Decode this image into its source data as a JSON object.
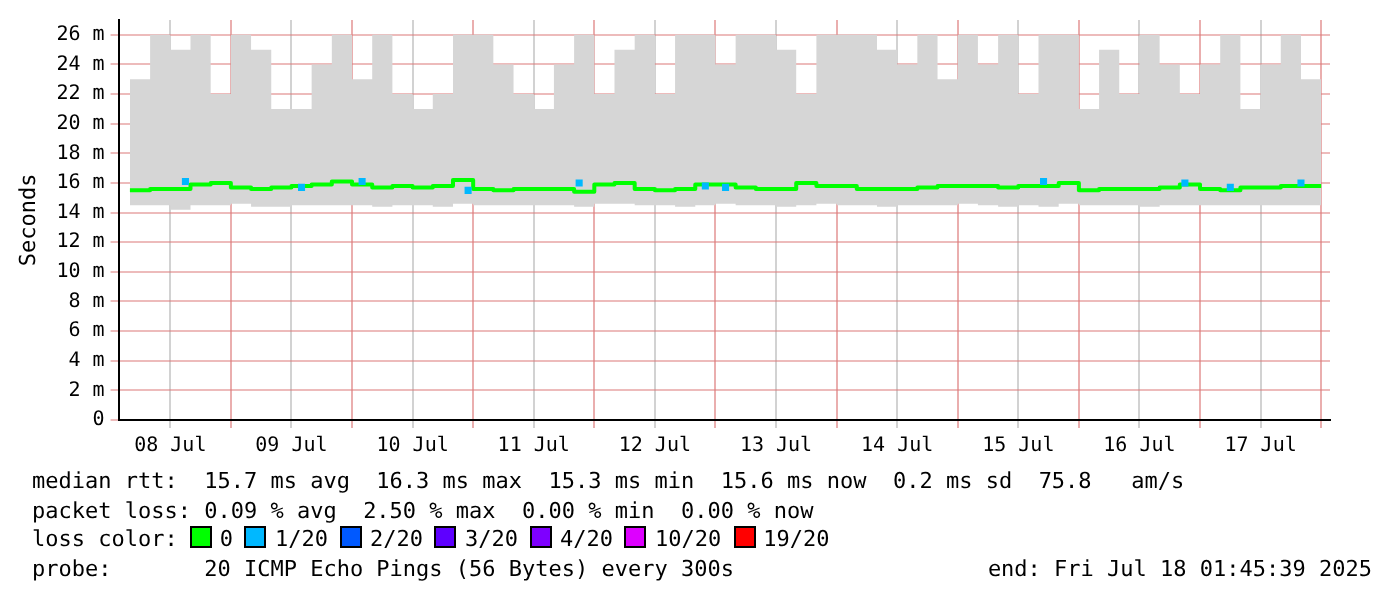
{
  "chart_data": {
    "type": "step",
    "ylabel": "Seconds",
    "legend_title": "loss color:",
    "legend": "bottom",
    "grid": true,
    "xlim": [
      "2025-07-08T01:45",
      "2025-07-18T01:45"
    ],
    "xticks": [
      {
        "value": "2025-07-08T12:00",
        "label": "08 Jul"
      },
      {
        "value": "2025-07-09",
        "label": null
      },
      {
        "value": "2025-07-09T12:00",
        "label": "09 Jul"
      },
      {
        "value": "2025-07-10",
        "label": null
      },
      {
        "value": "2025-07-10T12:00",
        "label": "10 Jul"
      },
      {
        "value": "2025-07-11",
        "label": null
      },
      {
        "value": "2025-07-11T12:00",
        "label": "11 Jul"
      },
      {
        "value": "2025-07-12",
        "label": null
      },
      {
        "value": "2025-07-12T12:00",
        "label": "12 Jul"
      },
      {
        "value": "2025-07-13",
        "label": null
      },
      {
        "value": "2025-07-13T12:00",
        "label": "13 Jul"
      },
      {
        "value": "2025-07-14",
        "label": null
      },
      {
        "value": "2025-07-14T12:00",
        "label": "14 Jul"
      },
      {
        "value": "2025-07-15",
        "label": null
      },
      {
        "value": "2025-07-15T12:00",
        "label": "15 Jul"
      },
      {
        "value": "2025-07-16",
        "label": null
      },
      {
        "value": "2025-07-16T12:00",
        "label": "16 Jul"
      },
      {
        "value": "2025-07-17",
        "label": null
      },
      {
        "value": "2025-07-17T12:00",
        "label": "17 Jul"
      },
      {
        "value": "2025-07-18",
        "label": null
      }
    ],
    "ylim": [
      0,
      27
    ],
    "yticks": [
      0,
      {
        "value": 2,
        "label": "2 m"
      },
      {
        "value": 4,
        "label": "4 m"
      },
      {
        "value": 6,
        "label": "6 m"
      },
      {
        "value": 8,
        "label": "8 m"
      },
      {
        "value": 10,
        "label": "10 m"
      },
      {
        "value": 12,
        "label": "12 m"
      },
      {
        "value": 14,
        "label": "14 m"
      },
      {
        "value": 16,
        "label": "16 m"
      },
      {
        "value": 18,
        "label": "18 m"
      },
      {
        "value": 20,
        "label": "20 m"
      },
      {
        "value": 22,
        "label": "22 m"
      },
      {
        "value": 24,
        "label": "24 m"
      },
      {
        "value": 26,
        "label": "26 m"
      }
    ],
    "x": [
      "2025-07-08T04:00",
      "2025-07-08T08:00",
      "2025-07-08T12:00",
      "2025-07-08T16:00",
      "2025-07-08T20:00",
      "2025-07-09T00:00",
      "2025-07-09T04:00",
      "2025-07-09T08:00",
      "2025-07-09T12:00",
      "2025-07-09T16:00",
      "2025-07-09T20:00",
      "2025-07-10T00:00",
      "2025-07-10T04:00",
      "2025-07-10T08:00",
      "2025-07-10T12:00",
      "2025-07-10T16:00",
      "2025-07-10T20:00",
      "2025-07-11T00:00",
      "2025-07-11T04:00",
      "2025-07-11T08:00",
      "2025-07-11T12:00",
      "2025-07-11T16:00",
      "2025-07-11T20:00",
      "2025-07-12T00:00",
      "2025-07-12T04:00",
      "2025-07-12T08:00",
      "2025-07-12T12:00",
      "2025-07-12T16:00",
      "2025-07-12T20:00",
      "2025-07-13T00:00",
      "2025-07-13T04:00",
      "2025-07-13T08:00",
      "2025-07-13T12:00",
      "2025-07-13T16:00",
      "2025-07-13T20:00",
      "2025-07-14T00:00",
      "2025-07-14T04:00",
      "2025-07-14T08:00",
      "2025-07-14T12:00",
      "2025-07-14T16:00",
      "2025-07-14T20:00",
      "2025-07-15T00:00",
      "2025-07-15T04:00",
      "2025-07-15T08:00",
      "2025-07-15T12:00",
      "2025-07-15T16:00",
      "2025-07-15T20:00",
      "2025-07-16T00:00",
      "2025-07-16T04:00",
      "2025-07-16T08:00",
      "2025-07-16T12:00",
      "2025-07-16T16:00",
      "2025-07-16T20:00",
      "2025-07-17T00:00",
      "2025-07-17T04:00",
      "2025-07-17T08:00",
      "2025-07-17T12:00",
      "2025-07-17T16:00",
      "2025-07-17T20:00",
      "2025-07-18T00:00"
    ],
    "series": [
      {
        "name": "0",
        "color": "#00ff00",
        "values": [
          15.5,
          15.6,
          15.6,
          15.9,
          16.0,
          15.7,
          15.6,
          15.7,
          15.8,
          15.9,
          16.1,
          15.9,
          15.7,
          15.8,
          15.7,
          15.8,
          16.2,
          15.6,
          15.5,
          15.6,
          15.6,
          15.6,
          15.4,
          15.9,
          16.0,
          15.6,
          15.5,
          15.6,
          15.9,
          15.9,
          15.7,
          15.6,
          15.6,
          16.0,
          15.8,
          15.8,
          15.6,
          15.6,
          15.6,
          15.7,
          15.8,
          15.8,
          15.8,
          15.7,
          15.8,
          15.8,
          16.0,
          15.5,
          15.6,
          15.6,
          15.6,
          15.7,
          15.9,
          15.6,
          15.5,
          15.7,
          15.7,
          15.8,
          15.8,
          15.8
        ],
        "lower": [
          14.5,
          14.5,
          14.2,
          14.5,
          14.5,
          14.6,
          14.4,
          14.4,
          14.5,
          14.5,
          14.5,
          14.5,
          14.4,
          14.5,
          14.5,
          14.4,
          14.6,
          14.5,
          14.5,
          14.5,
          14.5,
          14.5,
          14.4,
          14.6,
          14.6,
          14.5,
          14.5,
          14.4,
          14.5,
          14.6,
          14.5,
          14.5,
          14.4,
          14.5,
          14.6,
          14.5,
          14.5,
          14.4,
          14.5,
          14.5,
          14.5,
          14.6,
          14.5,
          14.4,
          14.5,
          14.4,
          14.6,
          14.5,
          14.5,
          14.5,
          14.4,
          14.5,
          14.5,
          14.5,
          14.5,
          14.5,
          14.5,
          14.5,
          14.5,
          14.6
        ],
        "upper": [
          23,
          26,
          25,
          26,
          22,
          26,
          25,
          21,
          21,
          24,
          26,
          23,
          26,
          22,
          21,
          22,
          26,
          26,
          24,
          22,
          21,
          24,
          26,
          22,
          25,
          26,
          22,
          26,
          26,
          24,
          26,
          26,
          25,
          22,
          26,
          26,
          26,
          25,
          24,
          26,
          23,
          26,
          24,
          26,
          22,
          26,
          26,
          21,
          25,
          22,
          26,
          24,
          22,
          24,
          26,
          21,
          24,
          26,
          23,
          26
        ]
      },
      {
        "name": "1/20",
        "color": "#00b8ff",
        "type": "scatter",
        "marker": "square",
        "x": [
          "2025-07-08T15:00",
          "2025-07-09T14:00",
          "2025-07-10T02:00",
          "2025-07-10T23:00",
          "2025-07-11T21:00",
          "2025-07-12T22:00",
          "2025-07-13T02:00",
          "2025-07-15T17:00",
          "2025-07-16T21:00",
          "2025-07-17T06:00",
          "2025-07-17T20:00"
        ],
        "values": [
          16.1,
          15.7,
          16.1,
          15.5,
          16.0,
          15.8,
          15.7,
          16.1,
          16.0,
          15.7,
          16.0
        ]
      },
      {
        "name": "2/20",
        "color": "#0059ff",
        "type": "scatter",
        "marker": "square",
        "values": [
          null,
          null,
          null,
          null,
          null,
          null,
          null,
          null,
          null,
          null,
          null,
          null,
          null,
          null,
          null,
          null,
          null,
          null,
          null,
          null,
          null,
          null,
          null,
          null,
          null,
          null,
          null,
          null,
          null,
          null,
          null,
          null,
          null,
          null,
          null,
          null,
          null,
          null,
          null,
          null,
          null,
          null,
          null,
          null,
          null,
          null,
          null,
          null,
          null,
          null,
          null,
          null,
          null,
          null,
          null,
          null,
          null,
          null,
          null,
          null
        ]
      },
      {
        "name": "3/20",
        "color": "#5e00ff",
        "type": "scatter",
        "marker": "square",
        "values": [
          null,
          null,
          null,
          null,
          null,
          null,
          null,
          null,
          null,
          null,
          null,
          null,
          null,
          null,
          null,
          null,
          null,
          null,
          null,
          null,
          null,
          null,
          null,
          null,
          null,
          null,
          null,
          null,
          null,
          null,
          null,
          null,
          null,
          null,
          null,
          null,
          null,
          null,
          null,
          null,
          null,
          null,
          null,
          null,
          null,
          null,
          null,
          null,
          null,
          null,
          null,
          null,
          null,
          null,
          null,
          null,
          null,
          null,
          null,
          null
        ]
      },
      {
        "name": "4/20",
        "color": "#7e00ff",
        "type": "scatter",
        "marker": "square",
        "values": [
          null,
          null,
          null,
          null,
          null,
          null,
          null,
          null,
          null,
          null,
          null,
          null,
          null,
          null,
          null,
          null,
          null,
          null,
          null,
          null,
          null,
          null,
          null,
          null,
          null,
          null,
          null,
          null,
          null,
          null,
          null,
          null,
          null,
          null,
          null,
          null,
          null,
          null,
          null,
          null,
          null,
          null,
          null,
          null,
          null,
          null,
          null,
          null,
          null,
          null,
          null,
          null,
          null,
          null,
          null,
          null,
          null,
          null,
          null,
          null
        ]
      },
      {
        "name": "10/20",
        "color": "#dd00ff",
        "type": "scatter",
        "marker": "square",
        "values": [
          null,
          null,
          null,
          null,
          null,
          null,
          null,
          null,
          null,
          null,
          null,
          null,
          null,
          null,
          null,
          null,
          null,
          null,
          null,
          null,
          null,
          null,
          null,
          null,
          null,
          null,
          null,
          null,
          null,
          null,
          null,
          null,
          null,
          null,
          null,
          null,
          null,
          null,
          null,
          null,
          null,
          null,
          null,
          null,
          null,
          null,
          null,
          null,
          null,
          null,
          null,
          null,
          null,
          null,
          null,
          null,
          null,
          null,
          null,
          null
        ]
      },
      {
        "name": "19/20",
        "color": "#ff0000",
        "type": "scatter",
        "marker": "square",
        "values": [
          null,
          null,
          null,
          null,
          null,
          null,
          null,
          null,
          null,
          null,
          null,
          null,
          null,
          null,
          null,
          null,
          null,
          null,
          null,
          null,
          null,
          null,
          null,
          null,
          null,
          null,
          null,
          null,
          null,
          null,
          null,
          null,
          null,
          null,
          null,
          null,
          null,
          null,
          null,
          null,
          null,
          null,
          null,
          null,
          null,
          null,
          null,
          null,
          null,
          null,
          null,
          null,
          null,
          null,
          null,
          null,
          null,
          null,
          null,
          null
        ]
      }
    ],
    "annotations": [
      "median rtt:  15.7 ms avg  16.3 ms max  15.3 ms min  15.6 ms now  0.2 ms sd  75.8   am/s",
      "packet loss: 0.09 % avg  2.50 % max  0.00 % min  0.00 % now",
      "probe:       20 ICMP Echo Pings (56 Bytes) every 300s",
      "end: Fri Jul 18 01:45:39 2025"
    ]
  }
}
